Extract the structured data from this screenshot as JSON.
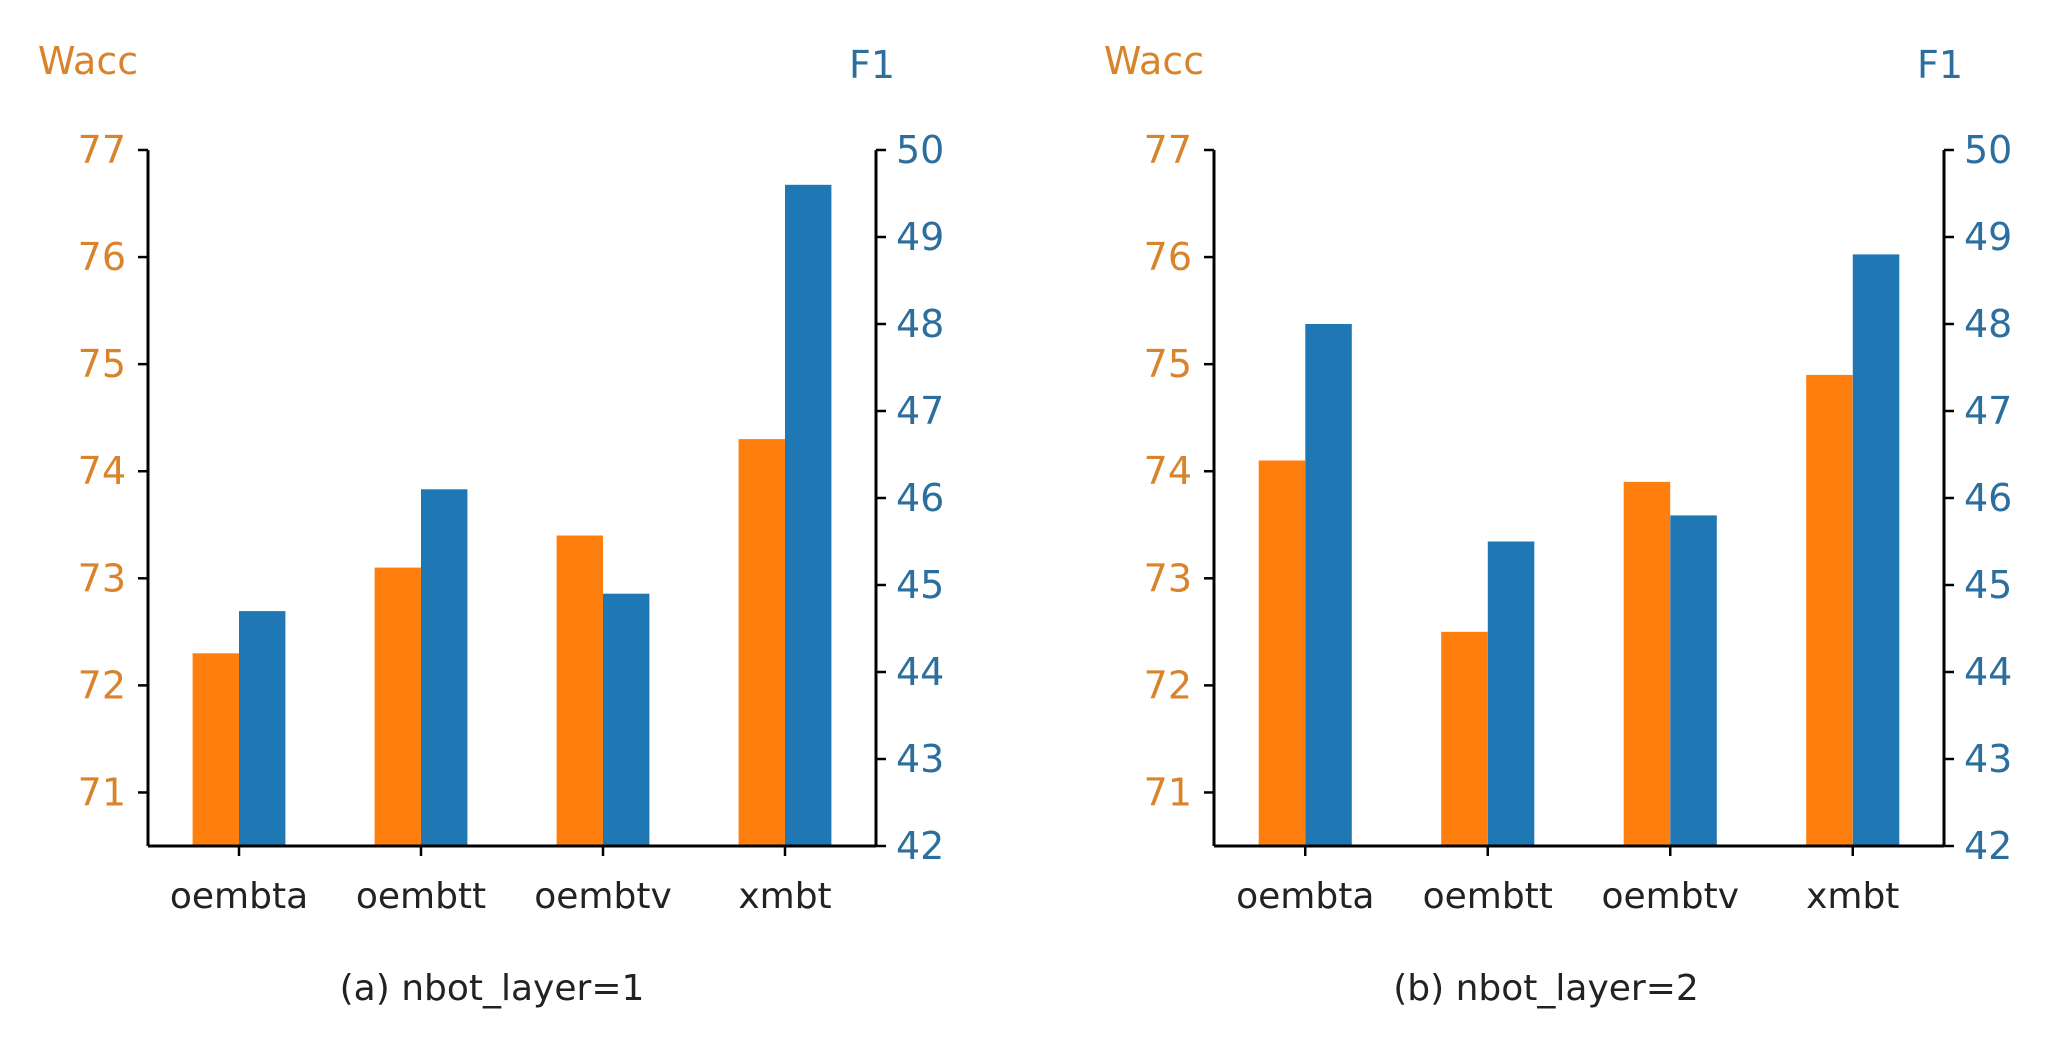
{
  "colors": {
    "wacc": "#ff7f0e",
    "f1": "#1f77b4",
    "axis": "#000000",
    "label_wacc": "#d9832a",
    "label_f1": "#2c6f9e"
  },
  "chart_data": [
    {
      "type": "bar",
      "caption": "(a) nbot_layer=1",
      "categories": [
        "oembta",
        "oembtt",
        "oembtv",
        "xmbt"
      ],
      "left_axis": {
        "label": "Wacc",
        "ylim": [
          70.5,
          77
        ],
        "ticks": [
          71,
          72,
          73,
          74,
          75,
          76,
          77
        ]
      },
      "right_axis": {
        "label": "F1",
        "ylim": [
          42,
          50
        ],
        "ticks": [
          42,
          43,
          44,
          45,
          46,
          47,
          48,
          49,
          50
        ]
      },
      "series": [
        {
          "name": "Wacc",
          "axis": "left",
          "values": [
            72.3,
            73.1,
            73.4,
            74.3
          ]
        },
        {
          "name": "F1",
          "axis": "right",
          "values": [
            44.7,
            46.1,
            44.9,
            49.6
          ]
        }
      ]
    },
    {
      "type": "bar",
      "caption": "(b) nbot_layer=2",
      "categories": [
        "oembta",
        "oembtt",
        "oembtv",
        "xmbt"
      ],
      "left_axis": {
        "label": "Wacc",
        "ylim": [
          70.5,
          77
        ],
        "ticks": [
          71,
          72,
          73,
          74,
          75,
          76,
          77
        ]
      },
      "right_axis": {
        "label": "F1",
        "ylim": [
          42,
          50
        ],
        "ticks": [
          42,
          43,
          44,
          45,
          46,
          47,
          48,
          49,
          50
        ]
      },
      "series": [
        {
          "name": "Wacc",
          "axis": "left",
          "values": [
            74.1,
            72.5,
            73.9,
            74.9
          ]
        },
        {
          "name": "F1",
          "axis": "right",
          "values": [
            48.0,
            45.5,
            45.8,
            48.8
          ]
        }
      ]
    }
  ]
}
